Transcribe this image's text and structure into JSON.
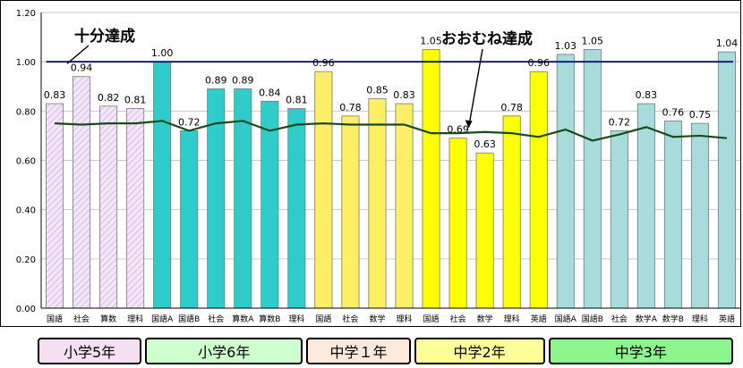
{
  "chart_data": {
    "type": "bar",
    "categories": [
      "国語",
      "社会",
      "算数",
      "理科",
      "国語A",
      "国語B",
      "社会",
      "算数A",
      "算数B",
      "理科",
      "国語",
      "社会",
      "数学",
      "理科",
      "国語",
      "社会",
      "数学",
      "理科",
      "英語",
      "国語A",
      "国語B",
      "社会",
      "数学A",
      "数学B",
      "理科",
      "英語"
    ],
    "series": [
      {
        "values": [
          0.83,
          0.94,
          0.82,
          0.81,
          1.0,
          0.72,
          0.89,
          0.89,
          0.84,
          0.81,
          0.96,
          0.78,
          0.85,
          0.83,
          1.05,
          0.69,
          0.63,
          0.78,
          0.96,
          1.03,
          1.05,
          0.72,
          0.83,
          0.76,
          0.75,
          1.04
        ]
      },
      {
        "type": "line",
        "values": [
          0.75,
          0.745,
          0.75,
          0.75,
          0.76,
          0.72,
          0.75,
          0.76,
          0.72,
          0.745,
          0.75,
          0.745,
          0.745,
          0.745,
          0.71,
          0.71,
          0.715,
          0.71,
          0.695,
          0.725,
          0.68,
          0.705,
          0.735,
          0.695,
          0.7,
          0.69
        ]
      }
    ],
    "data_labels": [
      "0.83",
      "0.94",
      "0.82",
      "0.81",
      "1.00",
      "0.72",
      "0.89",
      "0.89",
      "0.84",
      "0.81",
      "0.96",
      "0.78",
      "0.85",
      "0.83",
      "1.05",
      "0.69",
      "0.63",
      "0.78",
      "0.96",
      "1.03",
      "1.05",
      "0.72",
      "0.83",
      "0.76",
      "0.75",
      "1.04"
    ],
    "reference_line": {
      "value": 1.0,
      "color": "#1c1c7a"
    },
    "annotations": [
      {
        "text": "十分達成",
        "target_index": 1,
        "target_value": 1.0
      },
      {
        "text": "おおむね達成",
        "target_index": 15,
        "target_value": 0.72
      }
    ],
    "ylim": [
      0,
      1.2
    ],
    "yticks": [
      "0.00",
      "0.20",
      "0.40",
      "0.60",
      "0.80",
      "1.00",
      "1.20"
    ],
    "ytick_values": [
      0,
      0.2,
      0.4,
      0.6,
      0.8,
      1.0,
      1.2
    ],
    "grid": true,
    "groups": [
      {
        "label": "小学5年",
        "start": 0,
        "end": 3,
        "bar_color": "#f2e2f6",
        "hatch": true,
        "box_color": "#f6dff2"
      },
      {
        "label": "小学6年",
        "start": 4,
        "end": 9,
        "bar_color": "#30cccc",
        "box_color": "#cfffcf"
      },
      {
        "label": "中学１年",
        "start": 10,
        "end": 13,
        "bar_color": "#ffee66",
        "box_color": "#ffe9dc"
      },
      {
        "label": "中学2年",
        "start": 14,
        "end": 18,
        "bar_color": "#ffff00",
        "box_color": "#ffff99"
      },
      {
        "label": "中学3年",
        "start": 19,
        "end": 25,
        "bar_color": "#a8dcdc",
        "box_color": "#8cf58c"
      }
    ]
  }
}
